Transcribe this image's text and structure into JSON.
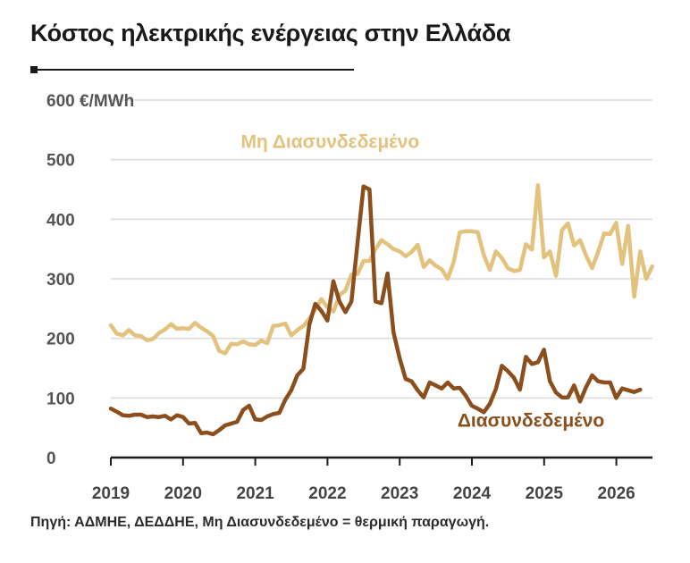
{
  "page": {
    "title": "Κόστος ηλεκτρικής ενέργειας στην Ελλάδα",
    "source": "Πηγή: ΑΔΜΗΕ, ΔΕΔΔΗΕ, Μη Διασυνδεδεμένο = θερμική παραγωγή."
  },
  "chart_data": {
    "type": "line",
    "title": "Κόστος ηλεκτρικής ενέργειας στην Ελλάδα",
    "xlabel": "",
    "ylabel": "",
    "y_unit": "€/MWh",
    "ylim": [
      0,
      600
    ],
    "y_ticks": [
      0,
      100,
      200,
      300,
      400,
      500,
      600
    ],
    "y_tick_labels": [
      "0",
      "100",
      "200",
      "300",
      "400",
      "500",
      "600 €/MWh"
    ],
    "xlim": [
      2019.0,
      2026.5
    ],
    "x_ticks": [
      2019,
      2020,
      2021,
      2022,
      2023,
      2024,
      2025,
      2026
    ],
    "x_tick_labels": [
      "2019",
      "2020",
      "2021",
      "2022",
      "2023",
      "2024",
      "2025",
      "2026"
    ],
    "grid": "horizontal",
    "legend": "direct labels",
    "x_start": 2019.0,
    "x_step": 0.0833,
    "series": [
      {
        "name": "Μη Διασυνδεδεμένο",
        "color": "#e3c27e",
        "label_value": [
          2020.8,
          520
        ],
        "values": [
          222,
          208,
          205,
          214,
          205,
          204,
          197,
          199,
          209,
          215,
          224,
          216,
          217,
          216,
          226,
          218,
          212,
          204,
          179,
          175,
          191,
          190,
          195,
          190,
          189,
          196,
          192,
          221,
          222,
          225,
          205,
          214,
          221,
          233,
          249,
          266,
          252,
          245,
          273,
          280,
          307,
          308,
          330,
          330,
          350,
          365,
          358,
          350,
          346,
          338,
          345,
          357,
          320,
          331,
          322,
          316,
          300,
          328,
          378,
          380,
          380,
          378,
          340,
          315,
          346,
          335,
          318,
          313,
          315,
          358,
          349,
          457,
          336,
          346,
          305,
          382,
          393,
          356,
          365,
          339,
          318,
          345,
          376,
          375,
          394,
          325,
          389,
          270,
          346,
          300,
          321
        ]
      },
      {
        "name": "Διασυνδεδεμένο",
        "color": "#8a4f1c",
        "label_value": [
          2023.8,
          52
        ],
        "values": [
          82,
          77,
          71,
          70,
          72,
          72,
          68,
          69,
          68,
          70,
          64,
          71,
          68,
          57,
          58,
          41,
          42,
          39,
          46,
          54,
          57,
          60,
          80,
          87,
          64,
          63,
          69,
          73,
          75,
          97,
          113,
          138,
          149,
          223,
          258,
          246,
          230,
          296,
          262,
          244,
          262,
          360,
          455,
          450,
          262,
          259,
          309,
          210,
          167,
          132,
          128,
          113,
          101,
          126,
          121,
          116,
          126,
          116,
          117,
          104,
          87,
          82,
          76,
          90,
          115,
          154,
          145,
          134,
          114,
          169,
          157,
          160,
          181,
          128,
          109,
          101,
          101,
          121,
          94,
          118,
          138,
          128,
          126,
          126,
          100,
          116,
          113,
          110,
          114
        ]
      }
    ]
  }
}
